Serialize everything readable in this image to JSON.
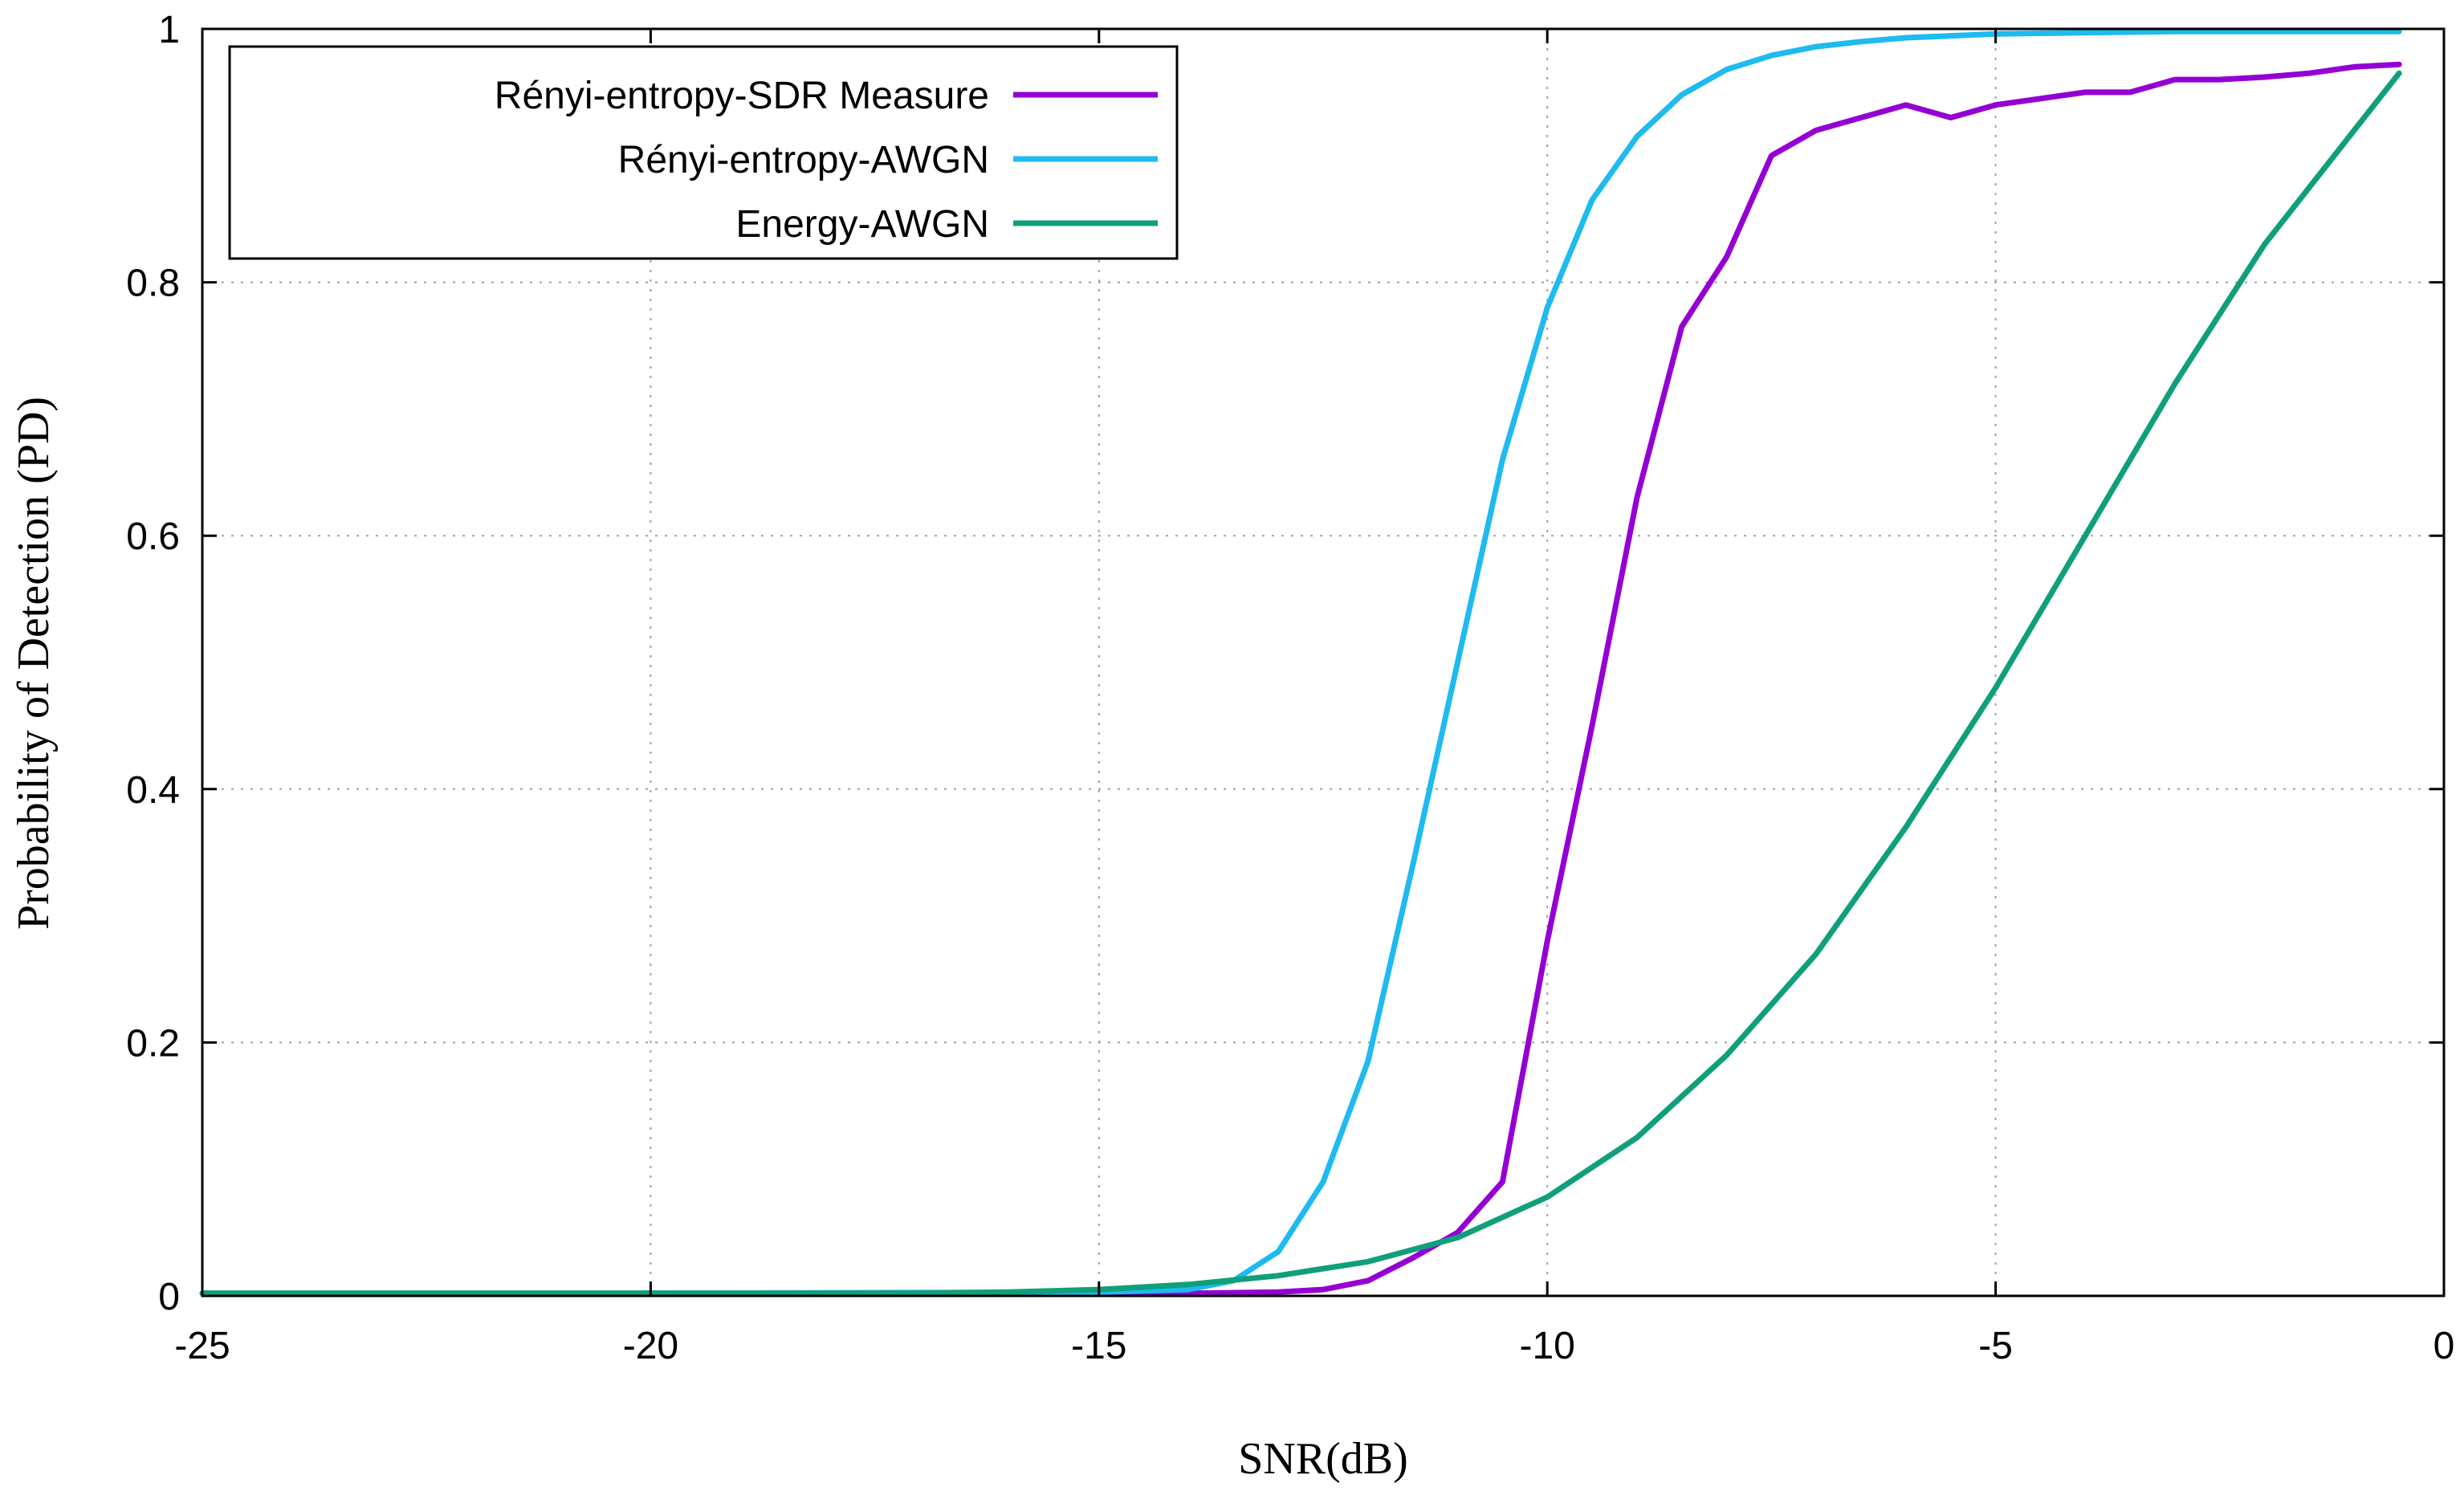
{
  "chart_data": {
    "type": "line",
    "title": "",
    "xlabel": "SNR(dB)",
    "ylabel": "Probability of Detection (PD)",
    "xlim": [
      -25,
      0
    ],
    "ylim": [
      0,
      1
    ],
    "xticks": [
      -25,
      -20,
      -15,
      -10,
      -5,
      0
    ],
    "yticks": [
      0,
      0.2,
      0.4,
      0.6,
      0.8,
      1
    ],
    "xtick_labels": [
      "-25",
      "-20",
      "-15",
      "-10",
      "-5",
      "0"
    ],
    "ytick_labels": [
      "0",
      "0.2",
      "0.4",
      "0.6",
      "0.8",
      "1"
    ],
    "grid": true,
    "legend_position": "top-left",
    "series": [
      {
        "name": "Rényi-entropy-SDR Measure",
        "color": "#9400d3",
        "x": [
          -25,
          -20,
          -15,
          -14,
          -13,
          -12.5,
          -12,
          -11.5,
          -11,
          -10.5,
          -10,
          -9.5,
          -9,
          -8.5,
          -8,
          -7.5,
          -7,
          -6.5,
          -6,
          -5.5,
          -5,
          -4.5,
          -4,
          -3.5,
          -3,
          -2.5,
          -2,
          -1.5,
          -1,
          -0.5
        ],
        "y": [
          0.002,
          0.002,
          0.002,
          0.002,
          0.003,
          0.005,
          0.012,
          0.03,
          0.05,
          0.09,
          0.28,
          0.45,
          0.63,
          0.765,
          0.82,
          0.9,
          0.92,
          0.93,
          0.94,
          0.93,
          0.94,
          0.945,
          0.95,
          0.95,
          0.96,
          0.96,
          0.962,
          0.965,
          0.97,
          0.972
        ]
      },
      {
        "name": "Rényi-entropy-AWGN",
        "color": "#1ebaf0",
        "x": [
          -25,
          -20,
          -15,
          -14,
          -13.5,
          -13,
          -12.5,
          -12,
          -11.5,
          -11,
          -10.5,
          -10,
          -9.5,
          -9,
          -8.5,
          -8,
          -7.5,
          -7,
          -6.5,
          -6,
          -5,
          -4,
          -3,
          -2,
          -1,
          -0.5
        ],
        "y": [
          0.002,
          0.002,
          0.003,
          0.005,
          0.012,
          0.035,
          0.09,
          0.185,
          0.34,
          0.5,
          0.66,
          0.78,
          0.865,
          0.915,
          0.948,
          0.968,
          0.979,
          0.986,
          0.99,
          0.993,
          0.996,
          0.997,
          0.998,
          0.998,
          0.998,
          0.998
        ]
      },
      {
        "name": "Energy-AWGN",
        "color": "#0f9f7b",
        "x": [
          -25,
          -20,
          -17,
          -16,
          -15,
          -14,
          -13,
          -12,
          -11,
          -10,
          -9,
          -8,
          -7,
          -6,
          -5,
          -4,
          -3,
          -2,
          -1,
          -0.5
        ],
        "y": [
          0.002,
          0.002,
          0.002,
          0.003,
          0.005,
          0.009,
          0.016,
          0.027,
          0.046,
          0.078,
          0.125,
          0.19,
          0.27,
          0.37,
          0.48,
          0.6,
          0.72,
          0.83,
          0.92,
          0.965
        ]
      }
    ]
  }
}
